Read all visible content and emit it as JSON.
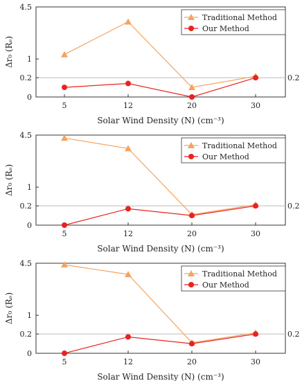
{
  "chart_data": [
    {
      "type": "line",
      "xlabel": "Solar Wind Density (N)  (cm⁻³)",
      "ylabel": "Δr₀ (Rₑ)",
      "categories": [
        "5",
        "12",
        "20",
        "30"
      ],
      "y_ticks": [
        "0",
        "0.2",
        "1",
        "4.5"
      ],
      "y_scale": "piecewise",
      "reference_line": {
        "value": 0.2,
        "label": "0.2"
      },
      "legend_position": "top-right",
      "series": [
        {
          "name": "Traditional Method",
          "color": "#f4a460",
          "marker": "triangle",
          "values": [
            1.3,
            3.5,
            0.1,
            0.26
          ]
        },
        {
          "name": "Our Method",
          "color": "#e8231f",
          "marker": "circle",
          "values": [
            0.1,
            0.14,
            0.0,
            0.2
          ]
        }
      ]
    },
    {
      "type": "line",
      "xlabel": "Solar Wind Density (N)  (cm⁻³)",
      "ylabel": "Δr₀ (Rₑ)",
      "categories": [
        "5",
        "12",
        "20",
        "30"
      ],
      "y_ticks": [
        "0",
        "0.2",
        "1",
        "4.5"
      ],
      "y_scale": "piecewise",
      "reference_line": {
        "value": 0.2,
        "label": "0.2"
      },
      "legend_position": "top-right",
      "series": [
        {
          "name": "Traditional Method",
          "color": "#f4a460",
          "marker": "triangle",
          "values": [
            4.3,
            3.6,
            0.11,
            0.25
          ]
        },
        {
          "name": "Our Method",
          "color": "#e8231f",
          "marker": "circle",
          "values": [
            0.0,
            0.17,
            0.1,
            0.2
          ]
        }
      ]
    },
    {
      "type": "line",
      "xlabel": "Solar Wind Density (N)  (cm⁻³)",
      "ylabel": "Δr₀ (Rₑ)",
      "categories": [
        "5",
        "12",
        "20",
        "30"
      ],
      "y_ticks": [
        "0",
        "0.2",
        "1",
        "4.5"
      ],
      "y_scale": "piecewise",
      "reference_line": {
        "value": 0.2,
        "label": "0.2"
      },
      "legend_position": "top-right",
      "series": [
        {
          "name": "Traditional Method",
          "color": "#f4a460",
          "marker": "triangle",
          "values": [
            4.4,
            3.75,
            0.11,
            0.25
          ]
        },
        {
          "name": "Our Method",
          "color": "#e8231f",
          "marker": "circle",
          "values": [
            0.0,
            0.17,
            0.1,
            0.2
          ]
        }
      ]
    }
  ]
}
